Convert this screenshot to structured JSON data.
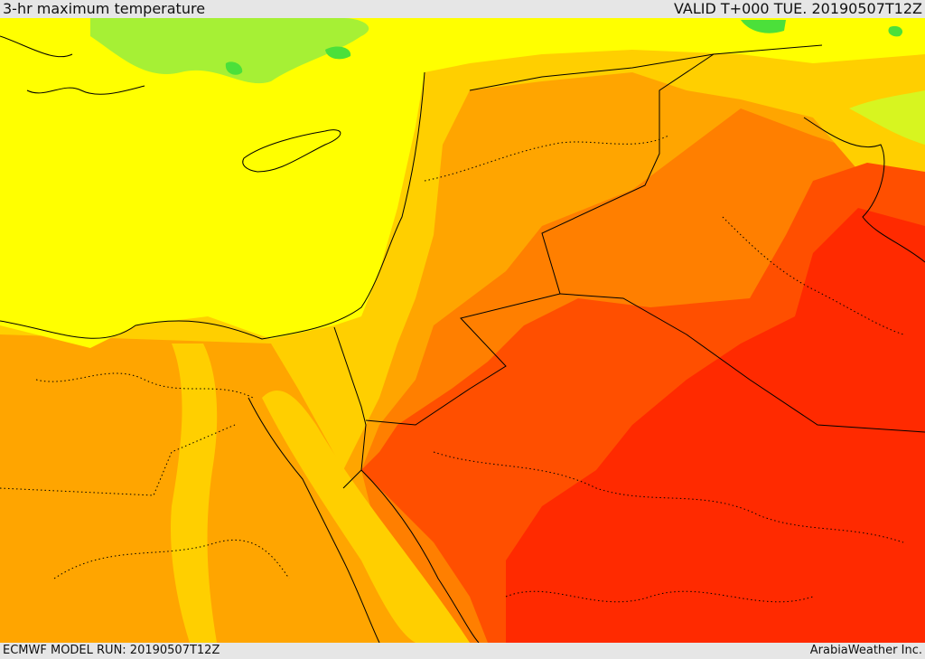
{
  "header": {
    "title": "3-hr maximum temperature",
    "valid_time": "VALID T+000 TUE. 20190507T12Z"
  },
  "footer": {
    "model_run": "ECMWF MODEL RUN: 20190507T12Z",
    "credit": "ArabiaWeather Inc."
  },
  "map": {
    "variable": "3-hr maximum temperature",
    "colors": {
      "green": "#4be03a",
      "light_green": "#a6f035",
      "yellow_green": "#d7f520",
      "yellow": "#ffff00",
      "amber": "#ffcf00",
      "orange": "#ffa500",
      "dark_orange": "#ff7f00",
      "red_orange": "#ff4f00",
      "red": "#ff2a00",
      "border": "#000000"
    }
  }
}
